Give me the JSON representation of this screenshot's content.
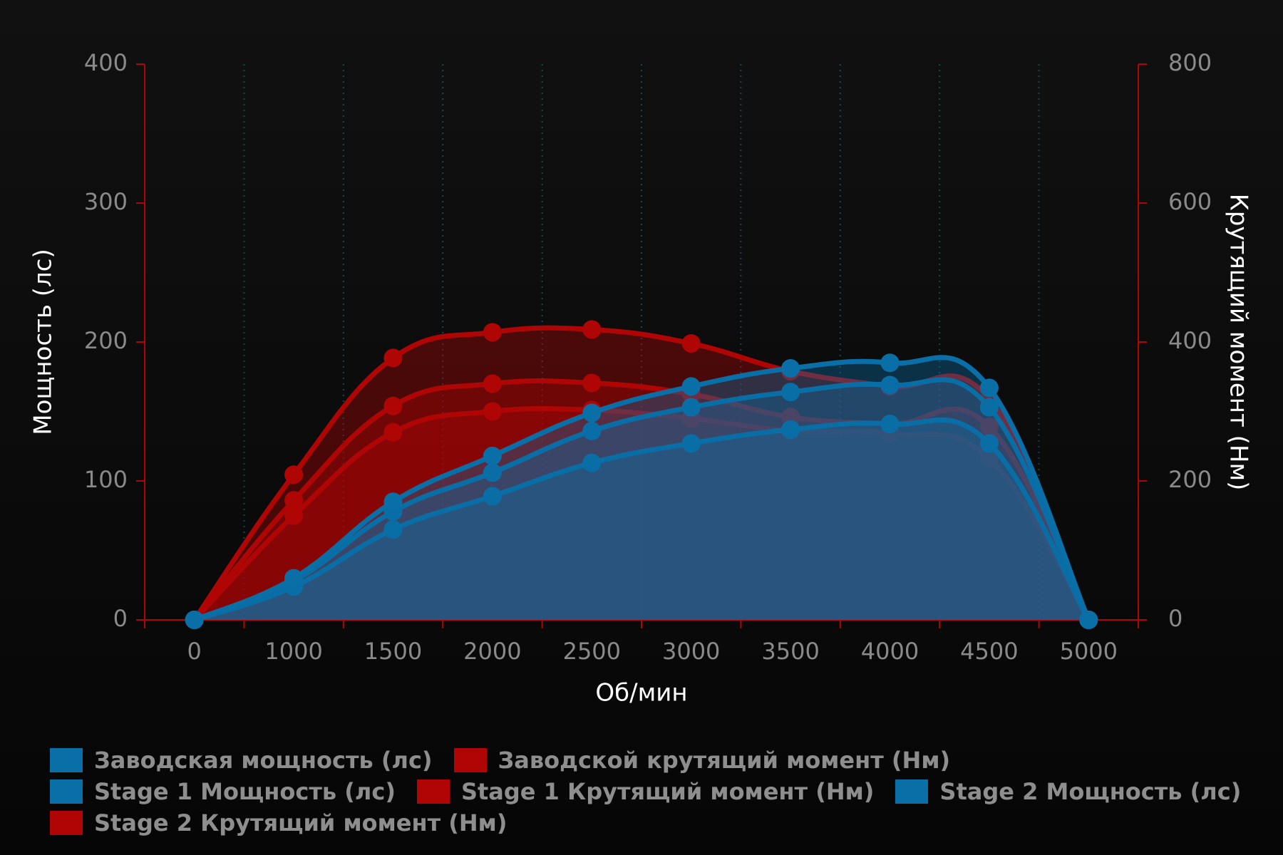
{
  "chart_data": {
    "type": "line",
    "x_label": "Об/мин",
    "y_label": "Мощность (лс)",
    "y2_label": "Крутящий момент (Нм)",
    "categories": [
      "0",
      "1000",
      "1500",
      "2000",
      "2500",
      "3000",
      "3500",
      "4000",
      "4500",
      "5000"
    ],
    "ylim": [
      0,
      400
    ],
    "yticks": [
      0,
      100,
      200,
      300,
      400
    ],
    "y2lim": [
      0,
      800
    ],
    "y2ticks": [
      0,
      200,
      400,
      600,
      800
    ],
    "series": [
      {
        "name": "Заводская мощность (лс)",
        "color": "#0a6fa6",
        "values": [
          0,
          24,
          65,
          89,
          113,
          127,
          137,
          141,
          127,
          0
        ]
      },
      {
        "name": "Заводской крутящий момент (Нм)",
        "color": "#b00505",
        "axis": "y2",
        "values": [
          0,
          150,
          270,
          300,
          302,
          290,
          272,
          268,
          232,
          0
        ]
      },
      {
        "name": "Stage 1 Мощность (лс)",
        "color": "#0a6fa6",
        "values": [
          0,
          28,
          78,
          106,
          136,
          153,
          164,
          169,
          153,
          0
        ]
      },
      {
        "name": "Stage 1 Крутящий момент (Нм)",
        "color": "#b00505",
        "axis": "y2",
        "values": [
          0,
          172,
          308,
          340,
          341,
          325,
          292,
          282,
          278,
          0
        ]
      },
      {
        "name": "Stage 2 Мощность (лс)",
        "color": "#0a6fa6",
        "values": [
          0,
          30,
          85,
          118,
          149,
          168,
          181,
          185,
          167,
          0
        ]
      },
      {
        "name": "Stage 2 Крутящий момент (Нм)",
        "color": "#b00505",
        "axis": "y2",
        "values": [
          0,
          209,
          377,
          414,
          418,
          398,
          358,
          336,
          318,
          0
        ]
      }
    ]
  }
}
